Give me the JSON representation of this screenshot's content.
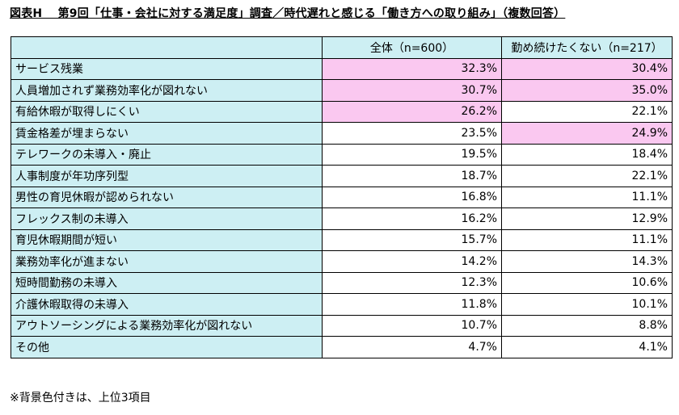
{
  "title": "図表H　 第9回「仕事・会社に対する満足度」調査／時代遅れと感じる「働き方への取り組み」（複数回答）",
  "footnote": "※背景色付きは、上位3項目",
  "colors": {
    "label_bg": "#cdeff3",
    "highlight_bg": "#fac8f0"
  },
  "chart_data": {
    "type": "table",
    "title": "図表H　 第9回「仕事・会社に対する満足度」調査／時代遅れと感じる「働き方への取り組み」（複数回答）",
    "columns": [
      "全体（n=600）",
      "勤め続けたくない（n=217）"
    ],
    "rows": [
      {
        "label": "サービス残業",
        "values": [
          "32.3%",
          "30.4%"
        ],
        "highlight": [
          true,
          true
        ]
      },
      {
        "label": "人員増加されず業務効率化が図れない",
        "values": [
          "30.7%",
          "35.0%"
        ],
        "highlight": [
          true,
          true
        ]
      },
      {
        "label": "有給休暇が取得しにくい",
        "values": [
          "26.2%",
          "22.1%"
        ],
        "highlight": [
          true,
          false
        ]
      },
      {
        "label": "賃金格差が埋まらない",
        "values": [
          "23.5%",
          "24.9%"
        ],
        "highlight": [
          false,
          true
        ]
      },
      {
        "label": "テレワークの未導入・廃止",
        "values": [
          "19.5%",
          "18.4%"
        ],
        "highlight": [
          false,
          false
        ]
      },
      {
        "label": "人事制度が年功序列型",
        "values": [
          "18.7%",
          "22.1%"
        ],
        "highlight": [
          false,
          false
        ]
      },
      {
        "label": "男性の育児休暇が認められない",
        "values": [
          "16.8%",
          "11.1%"
        ],
        "highlight": [
          false,
          false
        ]
      },
      {
        "label": "フレックス制の未導入",
        "values": [
          "16.2%",
          "12.9%"
        ],
        "highlight": [
          false,
          false
        ]
      },
      {
        "label": "育児休暇期間が短い",
        "values": [
          "15.7%",
          "11.1%"
        ],
        "highlight": [
          false,
          false
        ]
      },
      {
        "label": "業務効率化が進まない",
        "values": [
          "14.2%",
          "14.3%"
        ],
        "highlight": [
          false,
          false
        ]
      },
      {
        "label": "短時間勤務の未導入",
        "values": [
          "12.3%",
          "10.6%"
        ],
        "highlight": [
          false,
          false
        ]
      },
      {
        "label": "介護休暇取得の未導入",
        "values": [
          "11.8%",
          "10.1%"
        ],
        "highlight": [
          false,
          false
        ]
      },
      {
        "label": "アウトソーシングによる業務効率化が図れない",
        "values": [
          "10.7%",
          "8.8%"
        ],
        "highlight": [
          false,
          false
        ]
      },
      {
        "label": "その他",
        "values": [
          "4.7%",
          "4.1%"
        ],
        "highlight": [
          false,
          false
        ]
      }
    ]
  }
}
